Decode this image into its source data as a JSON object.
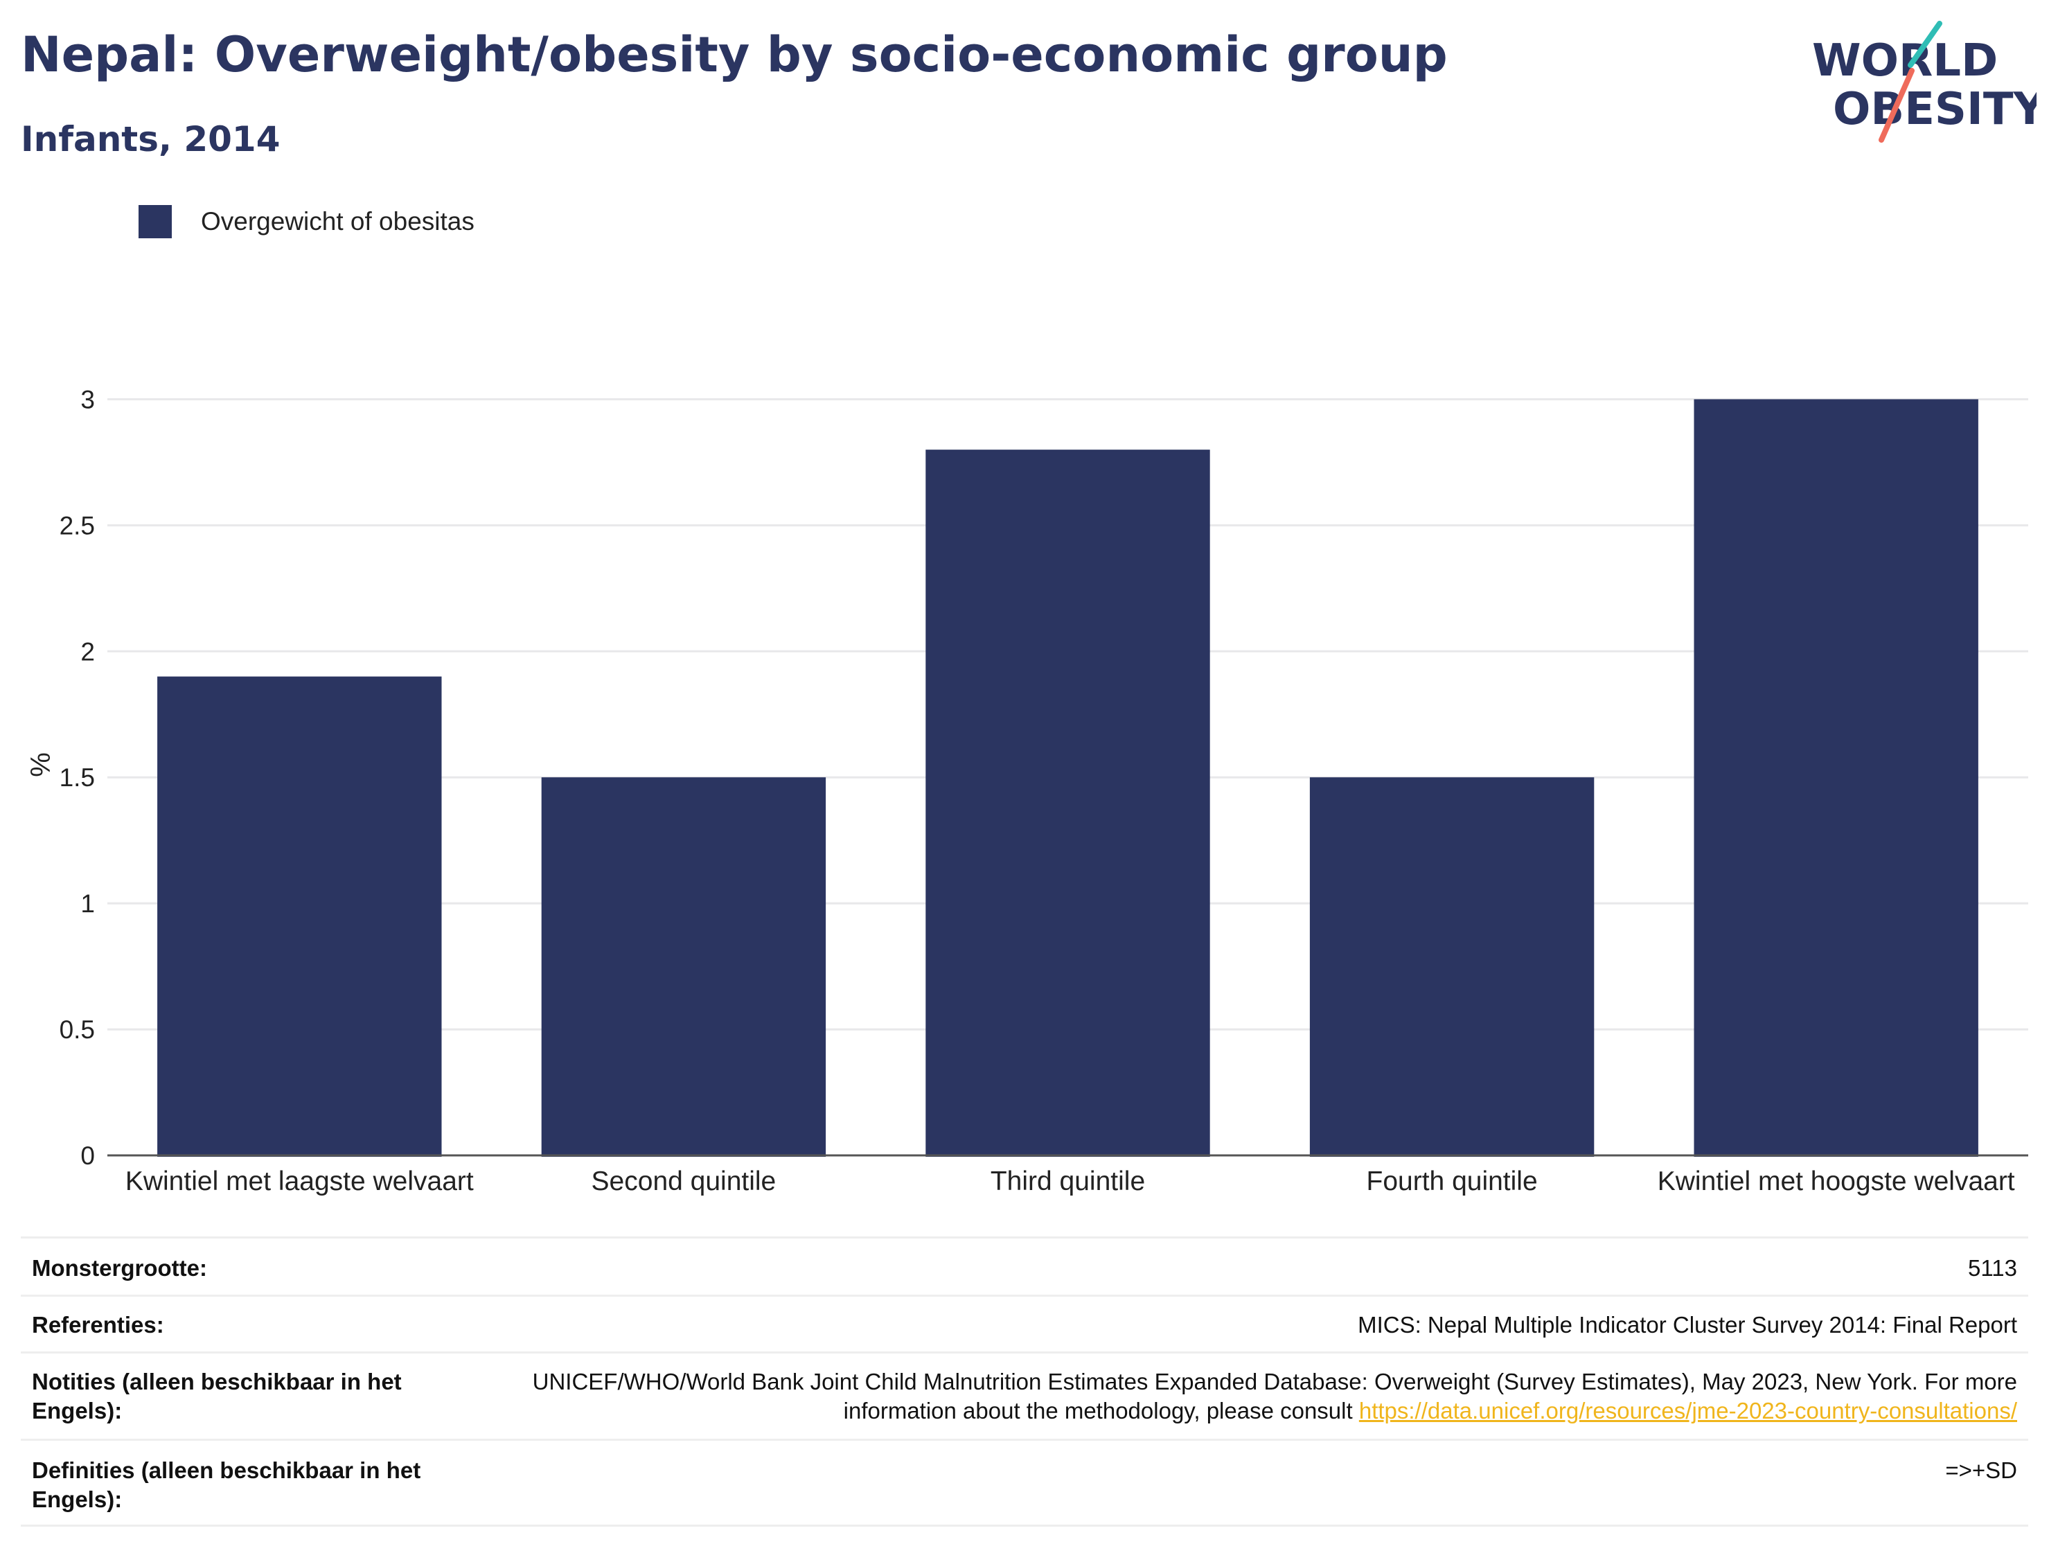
{
  "title": "Nepal: Overweight/obesity by socio-economic group",
  "subtitle": "Infants, 2014",
  "logo": {
    "line1": "WORLD",
    "line2": "OBESITY"
  },
  "colors": {
    "bar": "#2b3561",
    "accent_teal": "#2fbdb5",
    "accent_coral": "#ef6b5b",
    "link": "#f0b51c"
  },
  "chart_data": {
    "type": "bar",
    "categories": [
      "Kwintiel met laagste welvaart",
      "Second quintile",
      "Third quintile",
      "Fourth quintile",
      "Kwintiel met hoogste welvaart"
    ],
    "series": [
      {
        "name": "Overgewicht of obesitas",
        "values": [
          1.9,
          1.5,
          2.8,
          1.5,
          3.0
        ]
      }
    ],
    "ylabel": "%",
    "ylim": [
      0,
      3.1
    ],
    "yticks": [
      0,
      0.5,
      1,
      1.5,
      2,
      2.5,
      3
    ],
    "ytick_labels": [
      "0",
      "0.5",
      "1",
      "1.5",
      "2",
      "2.5",
      "3"
    ],
    "grid": true,
    "legend_position": "top-left"
  },
  "footer": {
    "rows": [
      {
        "key": "Monstergrootte:",
        "value": "5113"
      },
      {
        "key": "Referenties:",
        "value": "MICS: Nepal Multiple Indicator Cluster Survey 2014: Final Report"
      },
      {
        "key": "Notities (alleen beschikbaar in het Engels):",
        "value": "UNICEF/WHO/World Bank Joint Child Malnutrition Estimates Expanded Database: Overweight (Survey Estimates), May 2023, New York. For more information about the methodology, please consult ",
        "link": "https://data.unicef.org/resources/jme-2023-country-consultations/"
      },
      {
        "key": "Definities (alleen beschikbaar in het Engels):",
        "value": "=>+SD"
      }
    ]
  }
}
